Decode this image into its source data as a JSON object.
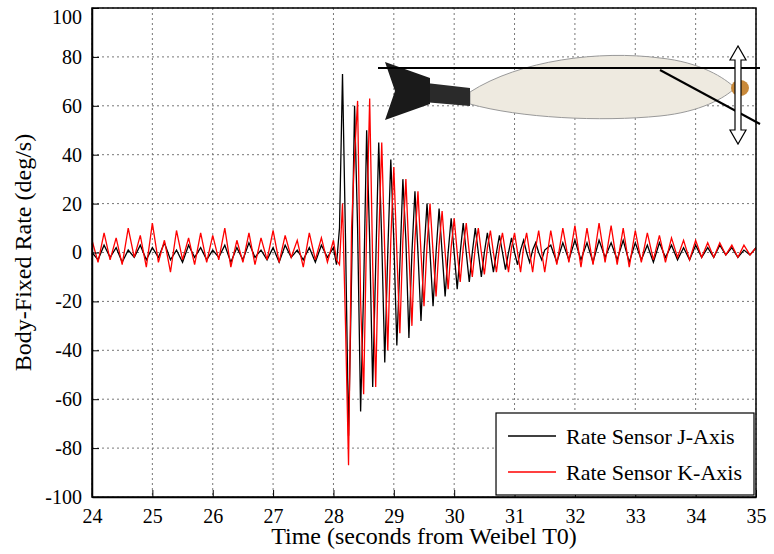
{
  "chart_data": {
    "type": "line",
    "x_label": "Time (seconds from Weibel T0)",
    "y_label": "Body-Fixed Rate (deg/s)",
    "xlim": [
      24,
      35
    ],
    "xticks": [
      24,
      25,
      26,
      27,
      28,
      29,
      30,
      31,
      32,
      33,
      34,
      35
    ],
    "ylim": [
      -100,
      100
    ],
    "yticks": [
      -100,
      -80,
      -60,
      -40,
      -20,
      0,
      20,
      40,
      60,
      80,
      100
    ],
    "grid": true,
    "legend": "bottom-right",
    "x": [
      24.0,
      24.1,
      24.2,
      24.3,
      24.4,
      24.5,
      24.6,
      24.7,
      24.8,
      24.9,
      25.0,
      25.1,
      25.2,
      25.3,
      25.4,
      25.5,
      25.6,
      25.7,
      25.8,
      25.9,
      26.0,
      26.1,
      26.2,
      26.3,
      26.4,
      26.5,
      26.6,
      26.7,
      26.8,
      26.9,
      27.0,
      27.1,
      27.2,
      27.3,
      27.4,
      27.5,
      27.6,
      27.7,
      27.8,
      27.9,
      28.0,
      28.05,
      28.1,
      28.15,
      28.2,
      28.25,
      28.3,
      28.35,
      28.4,
      28.45,
      28.5,
      28.55,
      28.6,
      28.65,
      28.7,
      28.75,
      28.8,
      28.85,
      28.9,
      28.95,
      29.0,
      29.05,
      29.1,
      29.15,
      29.2,
      29.25,
      29.3,
      29.35,
      29.4,
      29.45,
      29.5,
      29.55,
      29.6,
      29.65,
      29.7,
      29.75,
      29.8,
      29.85,
      29.9,
      29.95,
      30.0,
      30.05,
      30.1,
      30.15,
      30.2,
      30.25,
      30.3,
      30.35,
      30.4,
      30.45,
      30.5,
      30.55,
      30.6,
      30.65,
      30.7,
      30.75,
      30.8,
      30.85,
      30.9,
      30.95,
      31.0,
      31.05,
      31.1,
      31.15,
      31.2,
      31.25,
      31.3,
      31.35,
      31.4,
      31.45,
      31.5,
      31.6,
      31.7,
      31.8,
      31.9,
      32.0,
      32.1,
      32.2,
      32.3,
      32.4,
      32.5,
      32.6,
      32.7,
      32.8,
      32.9,
      33.0,
      33.1,
      33.2,
      33.3,
      33.4,
      33.5,
      33.6,
      33.7,
      33.8,
      33.9,
      34.0,
      34.1,
      34.2,
      34.3,
      34.4,
      34.5,
      34.6,
      34.7,
      34.8,
      34.9,
      35.0
    ],
    "series": [
      {
        "name": "Rate Sensor J-Axis",
        "color": "#000000",
        "values": [
          0,
          -3,
          3,
          -2,
          2,
          -4,
          1,
          -2,
          3,
          -3,
          2,
          -2,
          4,
          -3,
          1,
          -4,
          3,
          -2,
          2,
          -3,
          1,
          -2,
          3,
          -4,
          2,
          -3,
          4,
          -2,
          1,
          -3,
          2,
          -4,
          3,
          -2,
          1,
          -3,
          2,
          -4,
          3,
          -2,
          2,
          -5,
          10,
          73,
          5,
          -75,
          -10,
          60,
          10,
          -65,
          -15,
          50,
          5,
          -55,
          -5,
          45,
          5,
          -45,
          0,
          38,
          5,
          -38,
          -5,
          30,
          5,
          -35,
          0,
          25,
          0,
          -28,
          0,
          20,
          0,
          -22,
          0,
          18,
          0,
          -18,
          0,
          14,
          0,
          -15,
          0,
          12,
          0,
          -12,
          0,
          10,
          0,
          -10,
          0,
          8,
          0,
          -8,
          0,
          7,
          0,
          -7,
          0,
          6,
          0,
          -5,
          1,
          5,
          0,
          -4,
          1,
          4,
          0,
          -3,
          1,
          3,
          -4,
          4,
          -3,
          5,
          -3,
          4,
          -4,
          5,
          -2,
          4,
          -3,
          5,
          -4,
          4,
          -3,
          3,
          -4,
          4,
          -2,
          3,
          -3,
          2,
          -3,
          3,
          -2,
          2,
          -2,
          3,
          -1,
          2,
          -2,
          1,
          -1,
          2
        ]
      },
      {
        "name": "Rate Sensor K-Axis",
        "color": "#ff0000",
        "values": [
          5,
          -4,
          8,
          -3,
          6,
          -5,
          10,
          -2,
          7,
          -6,
          12,
          -4,
          5,
          -8,
          9,
          -3,
          6,
          -5,
          8,
          -4,
          7,
          -3,
          10,
          -6,
          5,
          -4,
          8,
          -5,
          6,
          -3,
          9,
          -4,
          7,
          -2,
          5,
          -6,
          8,
          -3,
          6,
          -4,
          5,
          -3,
          -5,
          20,
          -30,
          -87,
          10,
          40,
          62,
          -20,
          -58,
          10,
          63,
          -5,
          -55,
          5,
          45,
          0,
          -40,
          5,
          35,
          0,
          -33,
          5,
          30,
          0,
          -30,
          5,
          25,
          0,
          -22,
          3,
          20,
          0,
          -18,
          3,
          17,
          0,
          -15,
          2,
          14,
          0,
          -12,
          2,
          12,
          0,
          -10,
          2,
          10,
          0,
          -9,
          2,
          9,
          0,
          -8,
          2,
          8,
          0,
          -8,
          2,
          8,
          0,
          -8,
          2,
          8,
          0,
          -8,
          2,
          9,
          0,
          -8,
          9,
          -5,
          10,
          -4,
          11,
          -6,
          10,
          -5,
          12,
          -4,
          11,
          -5,
          10,
          -6,
          9,
          -4,
          8,
          -3,
          7,
          -4,
          6,
          -2,
          5,
          -3,
          5,
          -2,
          4,
          -2,
          4,
          -1,
          3,
          -2,
          3,
          -1,
          2
        ]
      }
    ]
  }
}
